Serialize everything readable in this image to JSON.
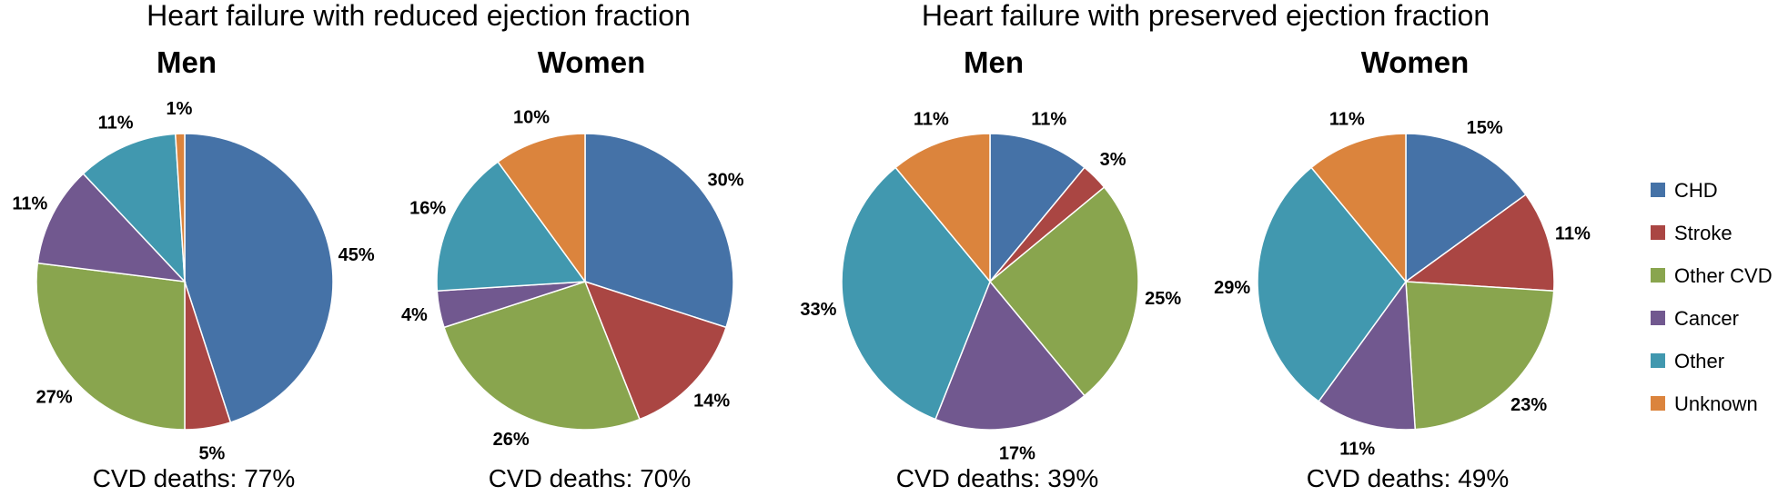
{
  "groups": [
    {
      "title": "Heart failure with reduced ejection fraction"
    },
    {
      "title": "Heart failure with preserved ejection fraction"
    }
  ],
  "legend": [
    {
      "name": "CHD",
      "color": "#4572A7"
    },
    {
      "name": "Stroke",
      "color": "#AA4643"
    },
    {
      "name": "Other CVD",
      "color": "#89A54E"
    },
    {
      "name": "Cancer",
      "color": "#71588F"
    },
    {
      "name": "Other",
      "color": "#4198AF"
    },
    {
      "name": "Unknown",
      "color": "#DB843D"
    }
  ],
  "chart_data": [
    {
      "type": "pie",
      "group": "Heart failure with reduced ejection fraction",
      "title": "Men",
      "footer": "CVD deaths: 77%",
      "slices": [
        {
          "name": "CHD",
          "value": 45,
          "label": "45%"
        },
        {
          "name": "Stroke",
          "value": 5,
          "label": "5%"
        },
        {
          "name": "Other CVD",
          "value": 27,
          "label": "27%"
        },
        {
          "name": "Cancer",
          "value": 11,
          "label": "11%"
        },
        {
          "name": "Other",
          "value": 11,
          "label": "11%"
        },
        {
          "name": "Unknown",
          "value": 1,
          "label": "1%"
        }
      ]
    },
    {
      "type": "pie",
      "group": "Heart failure with reduced ejection fraction",
      "title": "Women",
      "footer": "CVD deaths: 70%",
      "slices": [
        {
          "name": "CHD",
          "value": 30,
          "label": "30%"
        },
        {
          "name": "Stroke",
          "value": 14,
          "label": "14%"
        },
        {
          "name": "Other CVD",
          "value": 26,
          "label": "26%"
        },
        {
          "name": "Cancer",
          "value": 4,
          "label": "4%"
        },
        {
          "name": "Other",
          "value": 16,
          "label": "16%"
        },
        {
          "name": "Unknown",
          "value": 10,
          "label": "10%"
        }
      ]
    },
    {
      "type": "pie",
      "group": "Heart failure with preserved ejection fraction",
      "title": "Men",
      "footer": "CVD deaths: 39%",
      "slices": [
        {
          "name": "CHD",
          "value": 11,
          "label": "11%"
        },
        {
          "name": "Stroke",
          "value": 3,
          "label": "3%"
        },
        {
          "name": "Other CVD",
          "value": 25,
          "label": "25%"
        },
        {
          "name": "Cancer",
          "value": 17,
          "label": "17%"
        },
        {
          "name": "Other",
          "value": 33,
          "label": "33%"
        },
        {
          "name": "Unknown",
          "value": 11,
          "label": "11%"
        }
      ]
    },
    {
      "type": "pie",
      "group": "Heart failure with preserved ejection fraction",
      "title": "Women",
      "footer": "CVD deaths: 49%",
      "slices": [
        {
          "name": "CHD",
          "value": 15,
          "label": "15%"
        },
        {
          "name": "Stroke",
          "value": 11,
          "label": "11%"
        },
        {
          "name": "Other CVD",
          "value": 23,
          "label": "23%"
        },
        {
          "name": "Cancer",
          "value": 11,
          "label": "11%"
        },
        {
          "name": "Other",
          "value": 29,
          "label": "29%"
        },
        {
          "name": "Unknown",
          "value": 11,
          "label": "11%"
        }
      ]
    }
  ]
}
